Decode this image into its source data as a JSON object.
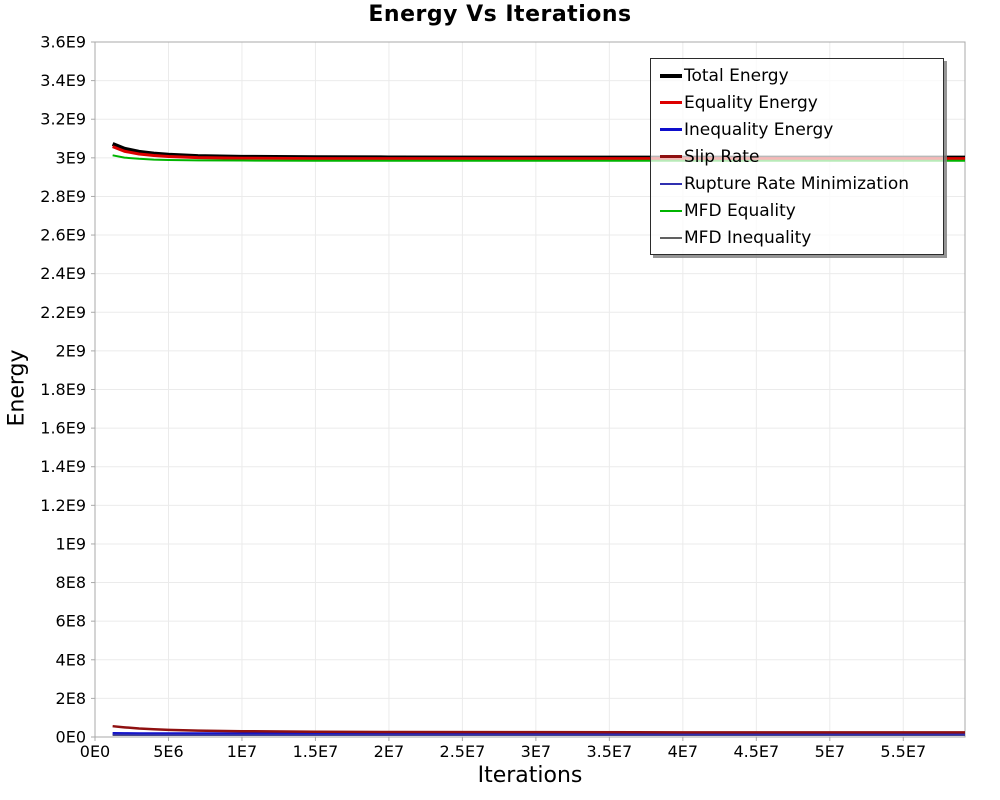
{
  "figure": {
    "title": "Energy Vs Iterations",
    "xlabel": "Iterations",
    "ylabel": "Energy"
  },
  "chart_data": {
    "type": "line",
    "title": "Energy Vs Iterations",
    "xlabel": "Iterations",
    "ylabel": "Energy",
    "grid": true,
    "legend_position": "top-right",
    "xlim": [
      0,
      59200000
    ],
    "ylim": [
      0,
      3600000000
    ],
    "x_ticks": [
      {
        "value": 0,
        "label": "0E0"
      },
      {
        "value": 5000000,
        "label": "5E6"
      },
      {
        "value": 10000000,
        "label": "1E7"
      },
      {
        "value": 15000000,
        "label": "1.5E7"
      },
      {
        "value": 20000000,
        "label": "2E7"
      },
      {
        "value": 25000000,
        "label": "2.5E7"
      },
      {
        "value": 30000000,
        "label": "3E7"
      },
      {
        "value": 35000000,
        "label": "3.5E7"
      },
      {
        "value": 40000000,
        "label": "4E7"
      },
      {
        "value": 45000000,
        "label": "4.5E7"
      },
      {
        "value": 50000000,
        "label": "5E7"
      },
      {
        "value": 55000000,
        "label": "5.5E7"
      }
    ],
    "y_ticks": [
      {
        "value": 0,
        "label": "0E0"
      },
      {
        "value": 200000000,
        "label": "2E8"
      },
      {
        "value": 400000000,
        "label": "4E8"
      },
      {
        "value": 600000000,
        "label": "6E8"
      },
      {
        "value": 800000000,
        "label": "8E8"
      },
      {
        "value": 1000000000,
        "label": "1E9"
      },
      {
        "value": 1200000000,
        "label": "1.2E9"
      },
      {
        "value": 1400000000,
        "label": "1.4E9"
      },
      {
        "value": 1600000000,
        "label": "1.6E9"
      },
      {
        "value": 1800000000,
        "label": "1.8E9"
      },
      {
        "value": 2000000000,
        "label": "2E9"
      },
      {
        "value": 2200000000,
        "label": "2.2E9"
      },
      {
        "value": 2400000000,
        "label": "2.4E9"
      },
      {
        "value": 2600000000,
        "label": "2.6E9"
      },
      {
        "value": 2800000000,
        "label": "2.8E9"
      },
      {
        "value": 3000000000,
        "label": "3E9"
      },
      {
        "value": 3200000000,
        "label": "3.2E9"
      },
      {
        "value": 3400000000,
        "label": "3.4E9"
      },
      {
        "value": 3600000000,
        "label": "3.6E9"
      }
    ],
    "x": [
      1200000,
      2000000,
      3000000,
      4000000,
      5000000,
      7000000,
      10000000,
      15000000,
      20000000,
      30000000,
      40000000,
      50000000,
      59200000
    ],
    "series": [
      {
        "name": "Total Energy",
        "color": "#000000",
        "width": 4,
        "y": [
          3072000000,
          3047000000,
          3031000000,
          3022000000,
          3016000000,
          3009000000,
          3005000000,
          3003000000,
          3002000000,
          3001000000,
          3001000000,
          3001000000,
          3001000000
        ]
      },
      {
        "name": "Equality Energy",
        "color": "#dd0000",
        "width": 3,
        "y": [
          3058000000,
          3034000000,
          3020000000,
          3012000000,
          3007000000,
          3001000000,
          2998000000,
          2996000000,
          2996000000,
          2996000000,
          2996000000,
          2996000000,
          2996000000
        ]
      },
      {
        "name": "Inequality Energy",
        "color": "#0e0ecc",
        "width": 3,
        "y": [
          18000000,
          17500000,
          17000000,
          17000000,
          17000000,
          17000000,
          17000000,
          17000000,
          17000000,
          17000000,
          17000000,
          17000000,
          17000000
        ]
      },
      {
        "name": "Slip Rate",
        "color": "#8f1010",
        "width": 2.5,
        "y": [
          56000000,
          50000000,
          44000000,
          40000000,
          37000000,
          33000000,
          30000000,
          27000000,
          26000000,
          25000000,
          24000000,
          24000000,
          24000000
        ]
      },
      {
        "name": "Rupture Rate Minimization",
        "color": "#3030b0",
        "width": 1.8,
        "y": [
          13000000,
          12500000,
          12000000,
          12000000,
          12000000,
          12000000,
          12000000,
          12000000,
          12000000,
          12000000,
          12000000,
          12000000,
          12000000
        ]
      },
      {
        "name": "MFD Equality",
        "color": "#00b400",
        "width": 2,
        "y": [
          3013000000,
          3001000000,
          2995000000,
          2991000000,
          2989000000,
          2987000000,
          2986000000,
          2985000000,
          2985000000,
          2985000000,
          2985000000,
          2985000000,
          2985000000
        ]
      },
      {
        "name": "MFD Inequality",
        "color": "#606060",
        "width": 1.8,
        "y": [
          10000000,
          10000000,
          10000000,
          10000000,
          10000000,
          10000000,
          10000000,
          10000000,
          10000000,
          10000000,
          10000000,
          10000000,
          10000000
        ]
      }
    ],
    "style": {
      "grid_color": "#ebebeb",
      "border_color": "#a8a8a8",
      "tick_color": "#aaaaaa"
    }
  }
}
